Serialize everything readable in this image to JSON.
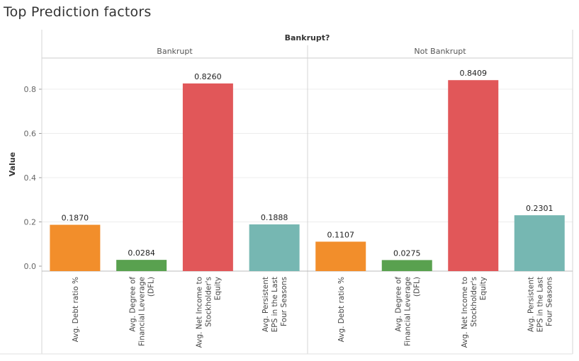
{
  "title": "Top Prediction factors",
  "chart_data": {
    "type": "bar",
    "column_header": "Bankrupt?",
    "ylabel": "Value",
    "ylim": [
      -0.02,
      0.92
    ],
    "yticks": [
      0.0,
      0.2,
      0.4,
      0.6,
      0.8
    ],
    "ytick_labels": [
      "0.0",
      "0.2",
      "0.4",
      "0.6",
      "0.8"
    ],
    "grid": true,
    "categories": [
      [
        "Avg. Debt ratio %"
      ],
      [
        "Avg. Degree of",
        "Financial Leverage",
        "(DFL)"
      ],
      [
        "Avg. Net Income to",
        "Stockholder's",
        "Equity"
      ],
      [
        "Avg. Persistent",
        "EPS in the Last",
        "Four Seasons"
      ]
    ],
    "colors": [
      "#f28e2b",
      "#59a14f",
      "#e15759",
      "#76b7b2"
    ],
    "panels": [
      {
        "name": "Bankrupt",
        "values": [
          0.187,
          0.0284,
          0.826,
          0.1888
        ],
        "labels": [
          "0.1870",
          "0.0284",
          "0.8260",
          "0.1888"
        ]
      },
      {
        "name": "Not Bankrupt",
        "values": [
          0.1107,
          0.0275,
          0.8409,
          0.2301
        ],
        "labels": [
          "0.1107",
          "0.0275",
          "0.8409",
          "0.2301"
        ]
      }
    ]
  }
}
